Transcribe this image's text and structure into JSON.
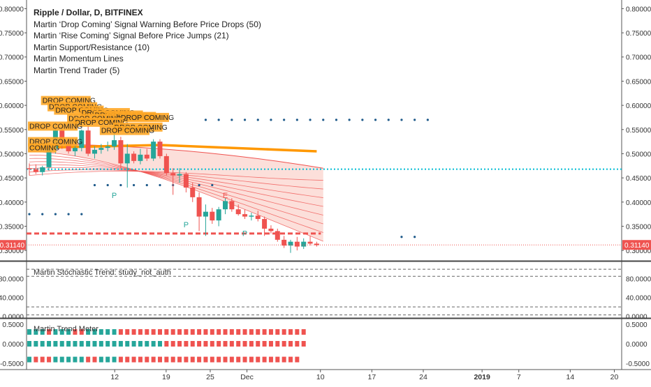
{
  "header": {
    "symbol": "Ripple / Dollar, D, BITFINEX",
    "indicators": [
      "Martin ‘Drop Coming’ Signal Warning Before Price Drops (50)",
      "Martin ‘Rise Coming’ Signal Before Price Jumps (21)",
      "Martin Support/Resistance (10)",
      "Martin Momentum Lines",
      "Martin Trend Trader (5)"
    ]
  },
  "stoch_label": "Martin Stochastic Trend: study_not_auth",
  "meter_label": "Martin Trend Meter",
  "colors": {
    "up": "#26a69a",
    "down": "#ef5350",
    "support": "#ef5350",
    "resistance": "#00bcd4",
    "trend": "#ff9800",
    "signal": "#ffa726",
    "dots": "#1e5a8a"
  },
  "chart_data": {
    "type": "candlestick",
    "price_axis": {
      "ticks": [
        "0.80000",
        "0.75000",
        "0.70000",
        "0.65000",
        "0.60000",
        "0.55000",
        "0.50000",
        "0.45000",
        "0.40000",
        "0.35000",
        "0.30000"
      ],
      "range": [
        0.28,
        0.815
      ]
    },
    "last_price": "0.31140",
    "x_axis": {
      "labels": [
        {
          "text": "12",
          "day": 12
        },
        {
          "text": "19",
          "day": 19
        },
        {
          "text": "25",
          "day": 25
        },
        {
          "text": "Dec",
          "day": 30
        },
        {
          "text": "10",
          "day": 40
        },
        {
          "text": "17",
          "day": 47
        },
        {
          "text": "24",
          "day": 54
        },
        {
          "text": "2019",
          "day": 62
        },
        {
          "text": "7",
          "day": 67
        },
        {
          "text": "14",
          "day": 74
        },
        {
          "text": "20",
          "day": 80
        }
      ],
      "range": [
        0,
        81
      ]
    },
    "candles": [
      {
        "o": 0.47,
        "h": 0.48,
        "l": 0.455,
        "c": 0.468
      },
      {
        "o": 0.468,
        "h": 0.478,
        "l": 0.458,
        "c": 0.462
      },
      {
        "o": 0.462,
        "h": 0.475,
        "l": 0.455,
        "c": 0.472
      },
      {
        "o": 0.472,
        "h": 0.515,
        "l": 0.465,
        "c": 0.51
      },
      {
        "o": 0.51,
        "h": 0.565,
        "l": 0.5,
        "c": 0.548
      },
      {
        "o": 0.548,
        "h": 0.56,
        "l": 0.51,
        "c": 0.52
      },
      {
        "o": 0.52,
        "h": 0.53,
        "l": 0.5,
        "c": 0.505
      },
      {
        "o": 0.505,
        "h": 0.52,
        "l": 0.495,
        "c": 0.512
      },
      {
        "o": 0.512,
        "h": 0.55,
        "l": 0.505,
        "c": 0.548
      },
      {
        "o": 0.548,
        "h": 0.56,
        "l": 0.495,
        "c": 0.5
      },
      {
        "o": 0.5,
        "h": 0.515,
        "l": 0.49,
        "c": 0.508
      },
      {
        "o": 0.508,
        "h": 0.52,
        "l": 0.5,
        "c": 0.512
      },
      {
        "o": 0.512,
        "h": 0.525,
        "l": 0.505,
        "c": 0.515
      },
      {
        "o": 0.515,
        "h": 0.545,
        "l": 0.508,
        "c": 0.528
      },
      {
        "o": 0.528,
        "h": 0.535,
        "l": 0.47,
        "c": 0.48
      },
      {
        "o": 0.48,
        "h": 0.52,
        "l": 0.43,
        "c": 0.5
      },
      {
        "o": 0.5,
        "h": 0.505,
        "l": 0.48,
        "c": 0.485
      },
      {
        "o": 0.485,
        "h": 0.51,
        "l": 0.478,
        "c": 0.498
      },
      {
        "o": 0.498,
        "h": 0.51,
        "l": 0.485,
        "c": 0.49
      },
      {
        "o": 0.49,
        "h": 0.53,
        "l": 0.485,
        "c": 0.525
      },
      {
        "o": 0.525,
        "h": 0.53,
        "l": 0.49,
        "c": 0.495
      },
      {
        "o": 0.495,
        "h": 0.5,
        "l": 0.455,
        "c": 0.46
      },
      {
        "o": 0.46,
        "h": 0.47,
        "l": 0.415,
        "c": 0.455
      },
      {
        "o": 0.455,
        "h": 0.47,
        "l": 0.44,
        "c": 0.458
      },
      {
        "o": 0.458,
        "h": 0.462,
        "l": 0.42,
        "c": 0.43
      },
      {
        "o": 0.43,
        "h": 0.44,
        "l": 0.4,
        "c": 0.41
      },
      {
        "o": 0.41,
        "h": 0.42,
        "l": 0.34,
        "c": 0.37
      },
      {
        "o": 0.37,
        "h": 0.395,
        "l": 0.33,
        "c": 0.38
      },
      {
        "o": 0.38,
        "h": 0.388,
        "l": 0.355,
        "c": 0.362
      },
      {
        "o": 0.362,
        "h": 0.39,
        "l": 0.35,
        "c": 0.385
      },
      {
        "o": 0.385,
        "h": 0.408,
        "l": 0.375,
        "c": 0.402
      },
      {
        "o": 0.402,
        "h": 0.408,
        "l": 0.38,
        "c": 0.385
      },
      {
        "o": 0.385,
        "h": 0.395,
        "l": 0.372,
        "c": 0.375
      },
      {
        "o": 0.375,
        "h": 0.385,
        "l": 0.365,
        "c": 0.37
      },
      {
        "o": 0.37,
        "h": 0.378,
        "l": 0.362,
        "c": 0.372
      },
      {
        "o": 0.372,
        "h": 0.382,
        "l": 0.36,
        "c": 0.365
      },
      {
        "o": 0.365,
        "h": 0.37,
        "l": 0.33,
        "c": 0.345
      },
      {
        "o": 0.345,
        "h": 0.352,
        "l": 0.335,
        "c": 0.34
      },
      {
        "o": 0.34,
        "h": 0.345,
        "l": 0.318,
        "c": 0.322
      },
      {
        "o": 0.322,
        "h": 0.33,
        "l": 0.305,
        "c": 0.31
      },
      {
        "o": 0.31,
        "h": 0.322,
        "l": 0.295,
        "c": 0.318
      },
      {
        "o": 0.318,
        "h": 0.328,
        "l": 0.3,
        "c": 0.308
      },
      {
        "o": 0.308,
        "h": 0.325,
        "l": 0.303,
        "c": 0.318
      },
      {
        "o": 0.318,
        "h": 0.33,
        "l": 0.31,
        "c": 0.314
      },
      {
        "o": 0.314,
        "h": 0.318,
        "l": 0.308,
        "c": 0.311
      }
    ],
    "support_level": 0.335,
    "resistance_level": 0.468,
    "trend_line": [
      [
        0,
        0.512
      ],
      [
        20,
        0.518
      ],
      [
        44,
        0.505
      ]
    ],
    "dot_rows": [
      {
        "y": 0.375,
        "from": 0,
        "to": 9
      },
      {
        "y": 0.435,
        "from": 10,
        "to": 28
      },
      {
        "y": 0.57,
        "from": 27,
        "to": 62
      },
      {
        "y": 0.328,
        "from": 57,
        "to": 60
      }
    ],
    "drop_coming": [
      {
        "text": "DROP COMING",
        "bar": 2,
        "y": 0.605
      },
      {
        "text": "DROP COMING",
        "bar": 3,
        "y": 0.592
      },
      {
        "text": "DROP COMING",
        "bar": 4,
        "y": 0.585
      },
      {
        "text": "DROP COMING",
        "bar": 8,
        "y": 0.58
      },
      {
        "text": "DROP COMING",
        "bar": 10,
        "y": 0.575
      },
      {
        "text": "DROP COMING",
        "bar": 12,
        "y": 0.572
      },
      {
        "text": "DROP COMING",
        "bar": 14,
        "y": 0.57
      },
      {
        "text": "DROP COMING",
        "bar": 6,
        "y": 0.568
      },
      {
        "text": "DROP COMING",
        "bar": 7,
        "y": 0.56
      },
      {
        "text": "DROP COMING",
        "bar": 0,
        "y": 0.552
      },
      {
        "text": "DROP COMING",
        "bar": 13,
        "y": 0.55
      },
      {
        "text": "DROP COMING",
        "bar": 11,
        "y": 0.543
      },
      {
        "text": "DROP COMING",
        "bar": 0,
        "y": 0.52
      },
      {
        "text": "COMING",
        "bar": 0,
        "y": 0.507
      }
    ],
    "markers": [
      {
        "text": "P",
        "bar": 13,
        "y": 0.408,
        "color": "#26a69a"
      },
      {
        "text": "P",
        "bar": 24,
        "y": 0.348,
        "color": "#26a69a"
      },
      {
        "text": "E",
        "bar": 30,
        "y": 0.408,
        "color": "#ef5350"
      },
      {
        "text": "P",
        "bar": 33,
        "y": 0.33,
        "color": "#26a69a"
      }
    ],
    "stoch_axis": {
      "ticks": [
        "80.0000",
        "40.0000",
        "0.0000"
      ],
      "range": [
        -2,
        115
      ],
      "levels": [
        100,
        85,
        20,
        3
      ]
    },
    "meter_axis": {
      "ticks": [
        "0.5000",
        "0.0000",
        "-0.5000"
      ],
      "range": [
        -0.62,
        0.62
      ]
    },
    "meter_rows": [
      {
        "y": 0.3,
        "pattern": "gggdgggddgggggddddddddddddddddddddddddddddd"
      },
      {
        "y": 0.0,
        "pattern": "gggggggggggggggggggggdddddddddddddddddddddd"
      },
      {
        "y": -0.4,
        "pattern": "gdddgggggddgggdddddddddddddddddddddddddddd"
      }
    ]
  }
}
